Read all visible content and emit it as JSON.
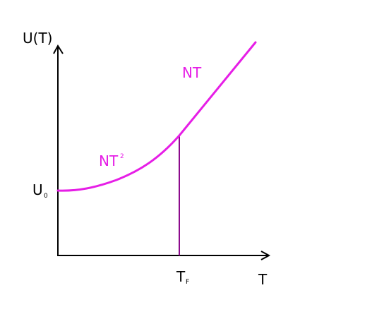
{
  "axes": {
    "y_label": "U(T)",
    "x_label": "T",
    "y_marker_main": "U",
    "y_marker_sub": "0",
    "x_marker_main": "T",
    "x_marker_sub": "F"
  },
  "curve_labels": {
    "low_main": "NT",
    "low_sup": "2",
    "high": "NT"
  },
  "colors": {
    "curve": "#e61ee6",
    "marker_line": "#8c0a8c",
    "axes": "#000000"
  }
}
